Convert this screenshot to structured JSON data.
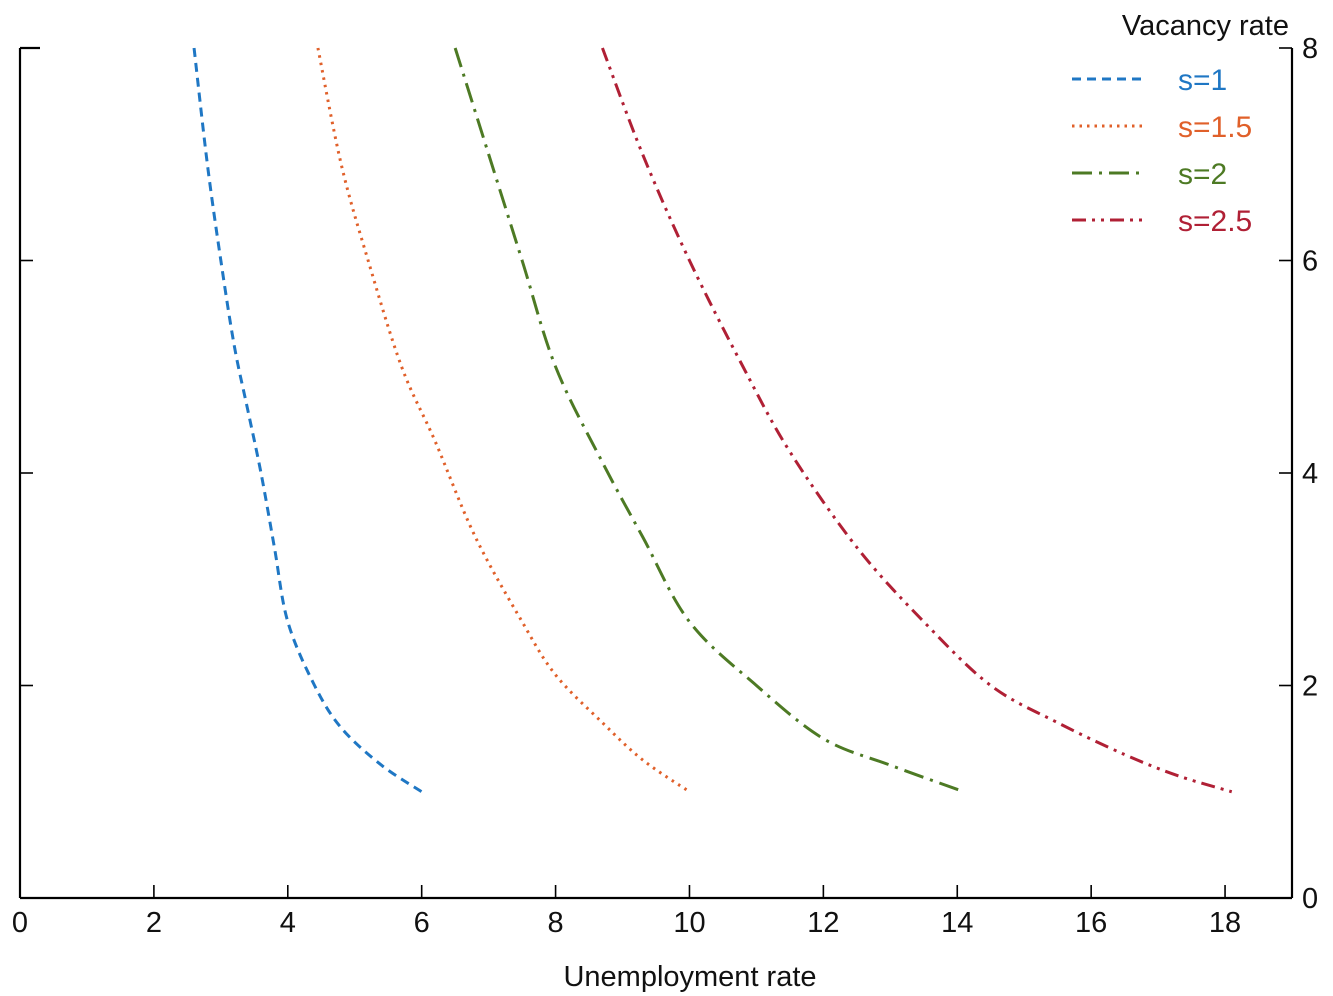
{
  "chart_data": {
    "type": "line",
    "xlabel": "Unemployment rate",
    "ylabel": "Vacancy rate",
    "xlim": [
      0,
      19
    ],
    "ylim": [
      0,
      8
    ],
    "x_ticks": [
      0,
      2,
      4,
      6,
      8,
      10,
      12,
      14,
      16,
      18
    ],
    "y_ticks": [
      0,
      2,
      4,
      6,
      8
    ],
    "y_axis_side": "right",
    "grid": false,
    "legend_position": "top-right",
    "series": [
      {
        "name": "s=1",
        "color": "#1f77c4",
        "dash": "dashed",
        "points": [
          [
            2.6,
            8.0
          ],
          [
            2.8,
            6.9
          ],
          [
            3.0,
            6.0
          ],
          [
            3.2,
            5.2
          ],
          [
            3.4,
            4.6
          ],
          [
            3.6,
            4.0
          ],
          [
            3.8,
            3.3
          ],
          [
            4.0,
            2.6
          ],
          [
            4.4,
            2.0
          ],
          [
            4.8,
            1.6
          ],
          [
            5.4,
            1.25
          ],
          [
            6.0,
            1.0
          ]
        ]
      },
      {
        "name": "s=1.5",
        "color": "#e0602a",
        "dash": "dotted",
        "points": [
          [
            4.45,
            8.0
          ],
          [
            4.8,
            6.9
          ],
          [
            5.2,
            6.0
          ],
          [
            5.7,
            5.0
          ],
          [
            6.2,
            4.3
          ],
          [
            6.8,
            3.4
          ],
          [
            7.5,
            2.6
          ],
          [
            8.0,
            2.1
          ],
          [
            8.7,
            1.65
          ],
          [
            9.3,
            1.3
          ],
          [
            10.0,
            1.0
          ]
        ]
      },
      {
        "name": "s=2",
        "color": "#4d7a24",
        "dash": "dashdot",
        "points": [
          [
            6.5,
            8.0
          ],
          [
            7.0,
            7.0
          ],
          [
            7.5,
            6.0
          ],
          [
            8.0,
            5.0
          ],
          [
            8.7,
            4.1
          ],
          [
            9.3,
            3.4
          ],
          [
            10.0,
            2.6
          ],
          [
            11.0,
            2.0
          ],
          [
            12.0,
            1.5
          ],
          [
            13.0,
            1.25
          ],
          [
            14.1,
            1.0
          ]
        ]
      },
      {
        "name": "s=2.5",
        "color": "#b02035",
        "dash": "dashdotdot",
        "points": [
          [
            8.7,
            8.0
          ],
          [
            9.3,
            7.0
          ],
          [
            10.0,
            6.0
          ],
          [
            10.8,
            5.0
          ],
          [
            11.5,
            4.2
          ],
          [
            12.5,
            3.3
          ],
          [
            13.5,
            2.6
          ],
          [
            14.5,
            2.0
          ],
          [
            15.5,
            1.65
          ],
          [
            16.5,
            1.35
          ],
          [
            17.3,
            1.15
          ],
          [
            18.1,
            1.0
          ]
        ]
      }
    ]
  }
}
